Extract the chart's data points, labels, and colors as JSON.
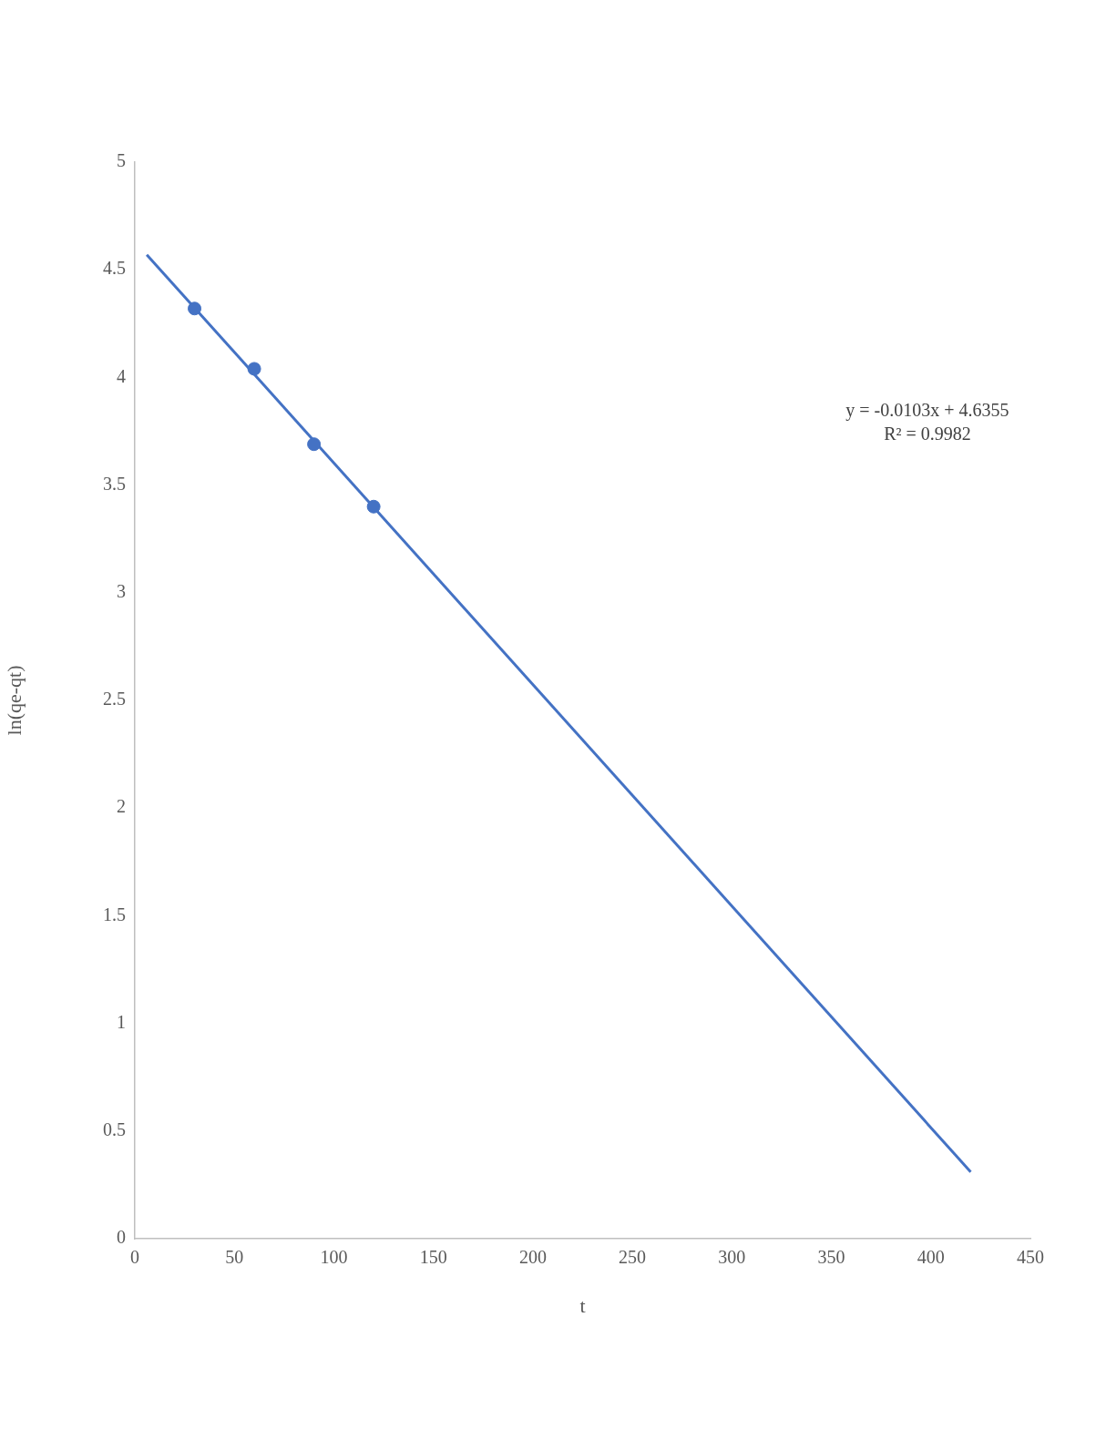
{
  "chart_data": {
    "type": "scatter",
    "xlabel": "t",
    "ylabel": "ln(qe-qt)",
    "series": [
      {
        "x": [
          30,
          60,
          90,
          120
        ],
        "values": [
          4.32,
          4.04,
          3.69,
          3.4
        ],
        "color": "#4472c4",
        "marker": "circle"
      },
      {
        "type": "line",
        "x": [
          6,
          420
        ],
        "values": [
          4.57,
          0.31
        ],
        "color": "#4472c4",
        "marker": "none",
        "line_style": "solid"
      }
    ],
    "xlim": [
      0,
      450
    ],
    "xticks": [
      0,
      50,
      100,
      150,
      200,
      250,
      300,
      350,
      400,
      450
    ],
    "ylim": [
      0,
      5
    ],
    "yticks": [
      0,
      0.5,
      1,
      1.5,
      2,
      2.5,
      3,
      3.5,
      4,
      4.5,
      5
    ],
    "grid": false,
    "legend": false,
    "annotations": [
      "y = -0.0103x + 4.6355",
      "R² = 0.9982"
    ]
  }
}
